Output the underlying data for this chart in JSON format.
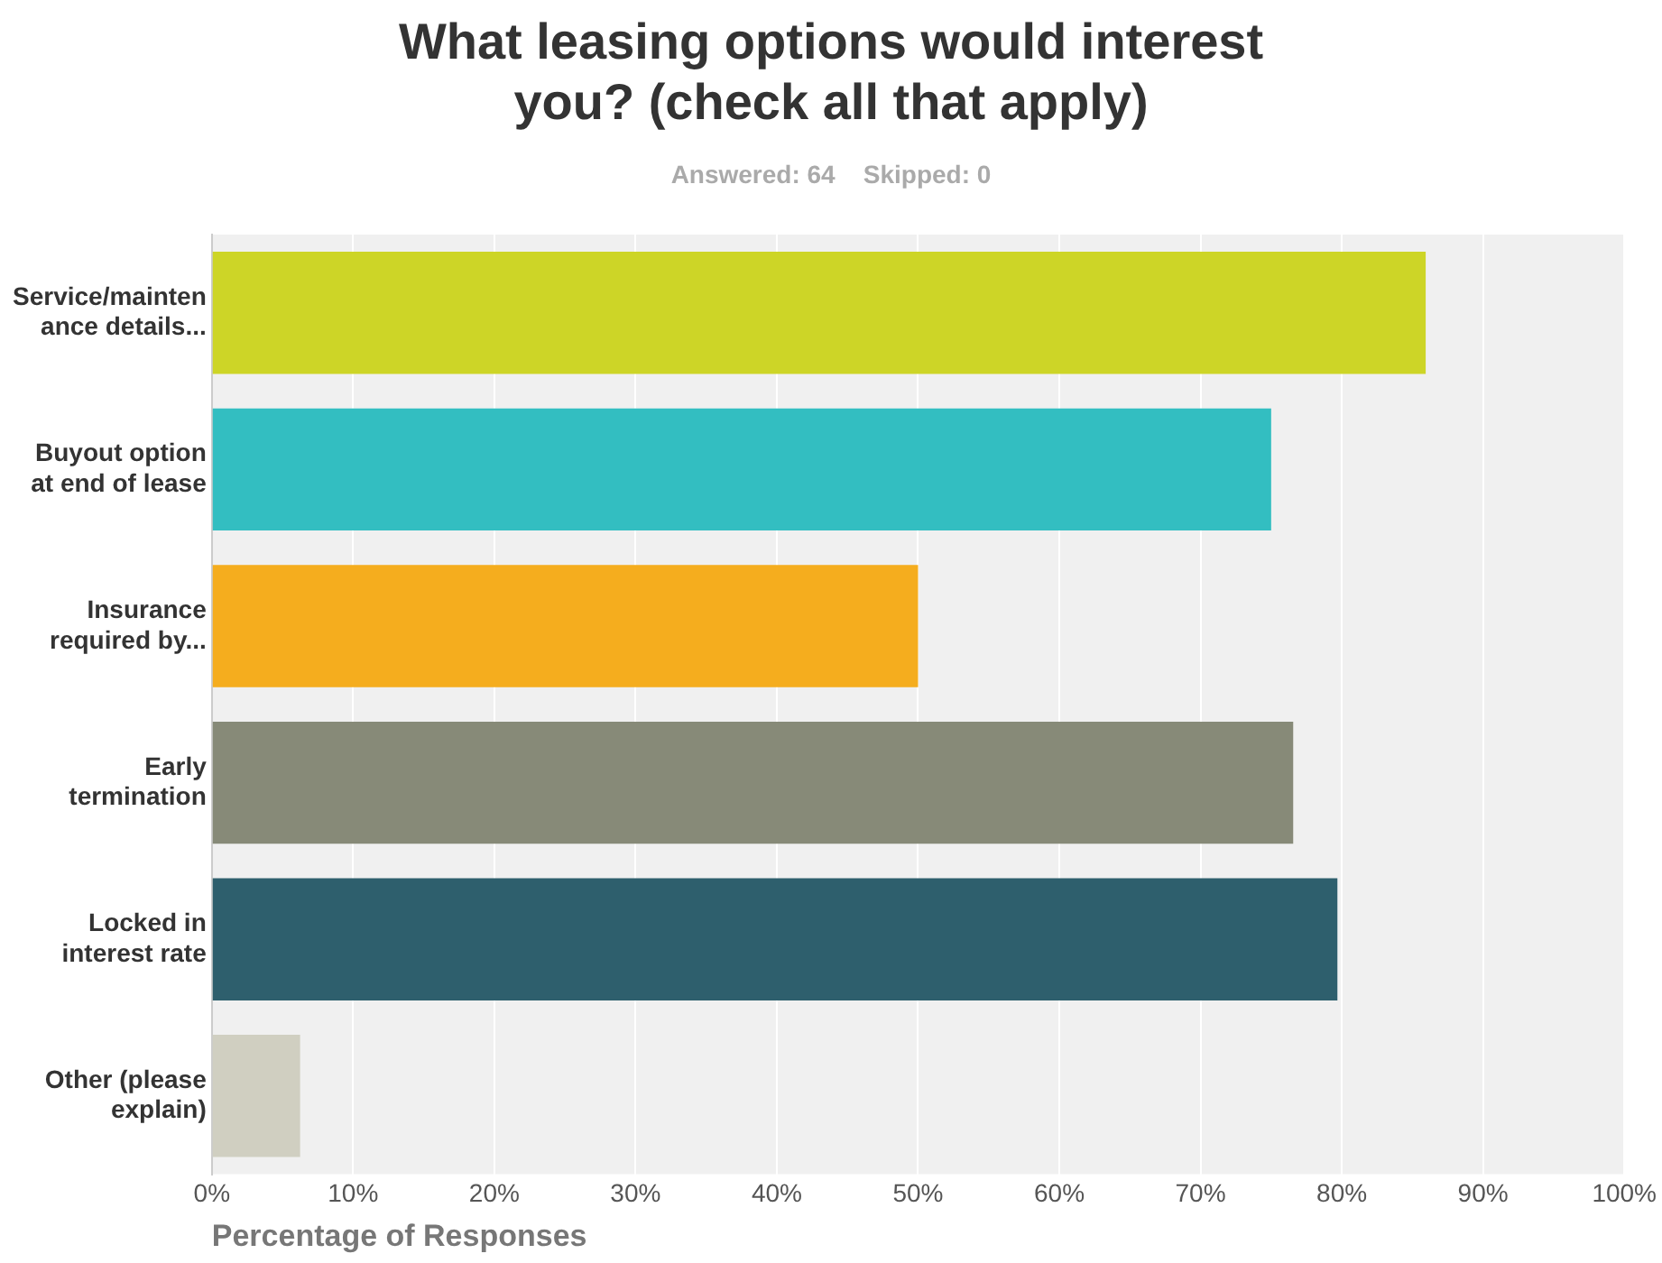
{
  "chart_data": {
    "type": "bar",
    "orientation": "horizontal",
    "title": "What leasing options would interest you? (check all that apply)",
    "subtitle": "Answered: 64    Skipped: 0",
    "xlabel": "Percentage of Responses",
    "categories": [
      "Service/maintenance details...",
      "Buyout option at end of lease",
      "Insurance required by...",
      "Early termination",
      "Locked in interest rate",
      "Other (please explain)"
    ],
    "values": [
      85.94,
      75,
      50,
      76.56,
      79.69,
      6.25
    ],
    "colors": [
      "#cdd527",
      "#33bec1",
      "#f5ad1e",
      "#878a78",
      "#2e5f6d",
      "#d0cfc1"
    ],
    "xlim": [
      0,
      100
    ],
    "xticks": [
      {
        "value": 0,
        "label": "0%"
      },
      {
        "value": 10,
        "label": "10%"
      },
      {
        "value": 20,
        "label": "20%"
      },
      {
        "value": 30,
        "label": "30%"
      },
      {
        "value": 40,
        "label": "40%"
      },
      {
        "value": 50,
        "label": "50%"
      },
      {
        "value": 60,
        "label": "60%"
      },
      {
        "value": 70,
        "label": "70%"
      },
      {
        "value": 80,
        "label": "80%"
      },
      {
        "value": 90,
        "label": "90%"
      },
      {
        "value": 100,
        "label": "100%"
      }
    ],
    "grid": "x",
    "legend": false
  }
}
